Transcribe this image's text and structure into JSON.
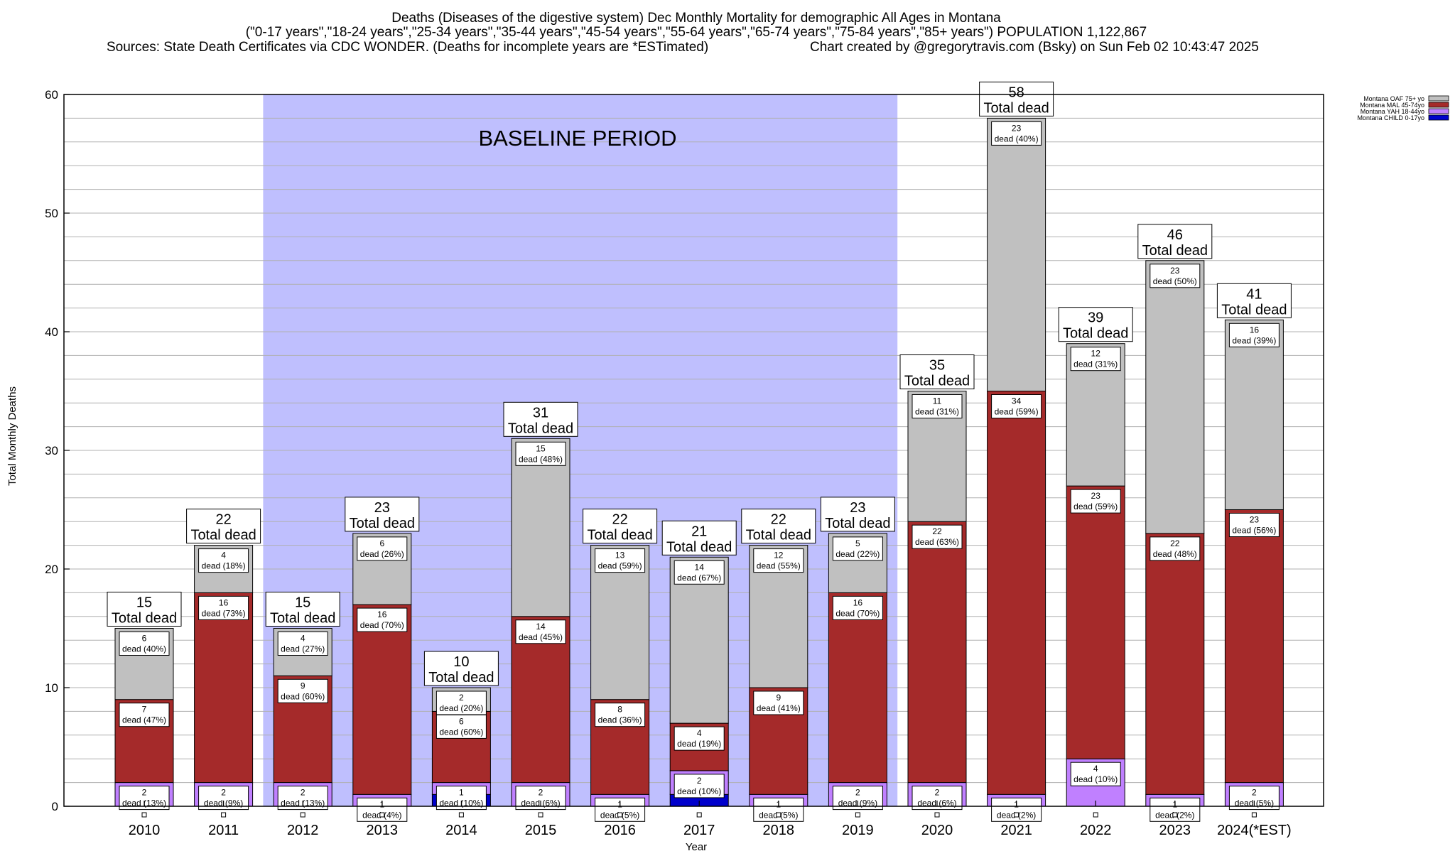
{
  "chart_data": {
    "type": "bar",
    "stacked": true,
    "title": "Deaths (Diseases of the digestive system) Dec Monthly Mortality for demographic All Ages in Montana",
    "subtitle": "(\"0-17 years\",\"18-24 years\",\"25-34 years\",\"35-44 years\",\"45-54 years\",\"55-64 years\",\"65-74 years\",\"75-84 years\",\"85+ years\") POPULATION 1,122,867",
    "sources": "Sources: State Death Certificates via CDC WONDER. (Deaths for incomplete years are *ESTimated)",
    "credit": "Chart created by @gregorytravis.com (Bsky) on Sun Feb 02 10:43:47 2025",
    "xlabel": "Year",
    "ylabel": "Total Monthly Deaths",
    "ylim": [
      0,
      60
    ],
    "yticks": [
      0,
      10,
      20,
      30,
      40,
      50,
      60
    ],
    "grid": true,
    "legend_position": "top-right",
    "baseline": {
      "label": "BASELINE PERIOD",
      "from": "2012",
      "to": "2019",
      "color": "#bfbffe"
    },
    "categories": [
      "2010",
      "2011",
      "2012",
      "2013",
      "2014",
      "2015",
      "2016",
      "2017",
      "2018",
      "2019",
      "2020",
      "2021",
      "2022",
      "2023",
      "2024(*EST)"
    ],
    "series": [
      {
        "name": "Montana CHILD 0-17yo",
        "color": "#0000cc",
        "values": [
          0,
          0,
          0,
          0,
          1,
          0,
          0,
          1,
          0,
          0,
          0,
          0,
          0,
          0,
          0
        ]
      },
      {
        "name": "Montana YAH 18-44yo",
        "color": "#c080ff",
        "values": [
          2,
          2,
          2,
          1,
          1,
          2,
          1,
          2,
          1,
          2,
          2,
          1,
          4,
          1,
          2
        ],
        "labels": [
          "dead (13%)",
          "dead (9%)",
          "dead (13%)",
          "dead (4%)",
          "dead (10%)",
          "dead (6%)",
          "dead (5%)",
          "dead (10%)",
          "dead (5%)",
          "dead (9%)",
          "dead (6%)",
          "dead (2%)",
          "dead (10%)",
          "dead (2%)",
          "dead (5%)"
        ]
      },
      {
        "name": "Montana MAL 45-74yo",
        "color": "#a52a2a",
        "values": [
          7,
          16,
          9,
          16,
          6,
          14,
          8,
          4,
          9,
          16,
          22,
          34,
          23,
          22,
          23
        ],
        "labels": [
          "dead (47%)",
          "dead (73%)",
          "dead (60%)",
          "dead (70%)",
          "dead (60%)",
          "dead (45%)",
          "dead (36%)",
          "dead (19%)",
          "dead (41%)",
          "dead (70%)",
          "dead (63%)",
          "dead (59%)",
          "dead (59%)",
          "dead (48%)",
          "dead (56%)"
        ]
      },
      {
        "name": "Montana OAF 75+ yo",
        "color": "#c0c0c0",
        "values": [
          6,
          4,
          4,
          6,
          2,
          15,
          13,
          14,
          12,
          5,
          11,
          23,
          12,
          23,
          16
        ],
        "labels": [
          "dead (40%)",
          "dead (18%)",
          "dead (27%)",
          "dead (26%)",
          "dead (20%)",
          "dead (48%)",
          "dead (59%)",
          "dead (67%)",
          "dead (55%)",
          "dead (22%)",
          "dead (31%)",
          "dead (40%)",
          "dead (31%)",
          "dead (50%)",
          "dead (39%)"
        ]
      }
    ],
    "totals": [
      15,
      22,
      15,
      23,
      10,
      31,
      22,
      21,
      22,
      23,
      35,
      58,
      39,
      46,
      41
    ],
    "total_suffix": "Total dead"
  }
}
